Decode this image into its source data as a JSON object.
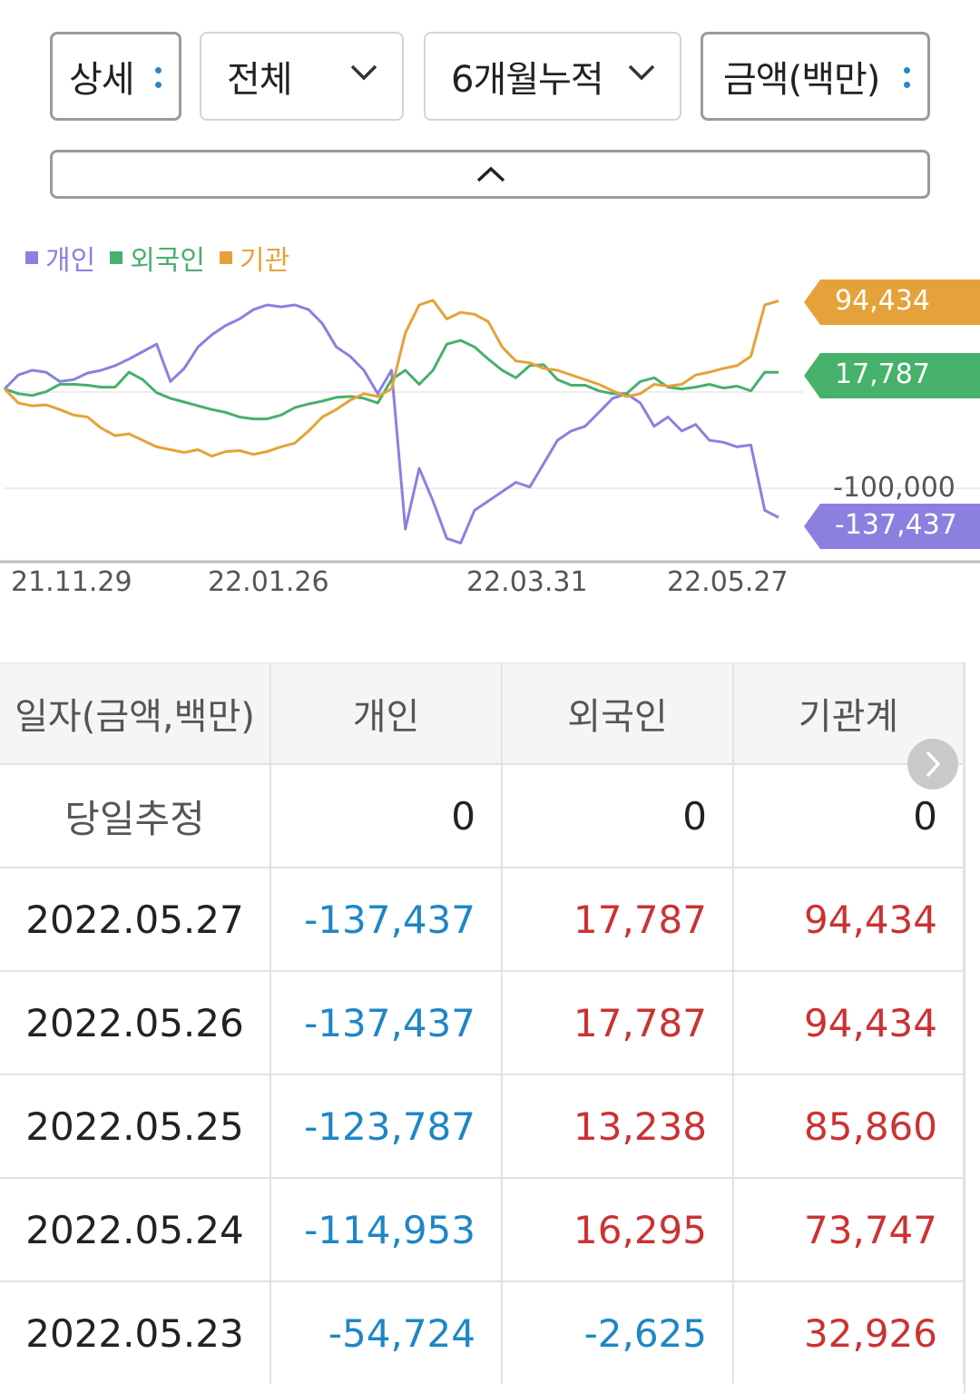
{
  "filters": [
    {
      "label": "상세",
      "control": "more"
    },
    {
      "label": "전체",
      "control": "dropdown"
    },
    {
      "label": "6개월누적",
      "control": "dropdown"
    },
    {
      "label": "금액(백만)",
      "control": "more"
    }
  ],
  "legend": [
    {
      "label": "개인",
      "color": "#8b80e0"
    },
    {
      "label": "외국인",
      "color": "#47b06b"
    },
    {
      "label": "기관",
      "color": "#e5a23a"
    }
  ],
  "chart_data": {
    "type": "line",
    "x_ticks": [
      "21.11.29",
      "22.01.26",
      "22.03.31",
      "22.05.27"
    ],
    "y_axis_label": "-100,000",
    "ylim": [
      -185000,
      125000
    ],
    "series": [
      {
        "name": "개인",
        "color": "#8b80e0",
        "last_value": "-137,437",
        "values": [
          0,
          15000,
          20000,
          18000,
          8000,
          10000,
          17000,
          20000,
          25000,
          32000,
          40000,
          48000,
          8000,
          22000,
          45000,
          58000,
          68000,
          75000,
          85000,
          90000,
          88000,
          90000,
          85000,
          70000,
          45000,
          35000,
          20000,
          -5000,
          20000,
          -150000,
          -85000,
          -120000,
          -160000,
          -165000,
          -130000,
          -120000,
          -110000,
          -100000,
          -105000,
          -80000,
          -55000,
          -45000,
          -40000,
          -25000,
          -10000,
          -5000,
          -15000,
          -40000,
          -30000,
          -45000,
          -38000,
          -55000,
          -57000,
          -62000,
          -60000,
          -130000,
          -137437
        ]
      },
      {
        "name": "외국인",
        "color": "#47b06b",
        "values": [
          0,
          -5000,
          -7000,
          -3000,
          5000,
          5000,
          4000,
          2000,
          2000,
          18000,
          10000,
          -4000,
          -10000,
          -14000,
          -18000,
          -22000,
          -25000,
          -30000,
          -32000,
          -32000,
          -28000,
          -20000,
          -16000,
          -13000,
          -9000,
          -8000,
          -10000,
          -15000,
          10000,
          20000,
          5000,
          20000,
          48000,
          52000,
          45000,
          32000,
          20000,
          12000,
          25000,
          26000,
          10000,
          4000,
          4000,
          -2000,
          -5000,
          -5000,
          8000,
          12000,
          2000,
          0,
          2000,
          5000,
          1000,
          3000,
          -2000,
          18000,
          17787
        ]
      },
      {
        "name": "기관",
        "color": "#e5a23a",
        "last_value": "94,434",
        "values": [
          0,
          -15000,
          -18000,
          -17000,
          -22000,
          -28000,
          -30000,
          -42000,
          -50000,
          -48000,
          -55000,
          -62000,
          -65000,
          -68000,
          -65000,
          -72000,
          -67000,
          -66000,
          -70000,
          -67000,
          -62000,
          -58000,
          -45000,
          -30000,
          -22000,
          -12000,
          -5000,
          -8000,
          0,
          60000,
          90000,
          95000,
          75000,
          82000,
          80000,
          72000,
          45000,
          30000,
          28000,
          22000,
          20000,
          15000,
          10000,
          5000,
          -2000,
          -8000,
          -5000,
          5000,
          3000,
          5000,
          15000,
          18000,
          22000,
          25000,
          35000,
          90000,
          94434
        ]
      }
    ]
  },
  "table": {
    "headers": [
      "일자(금액,백만)",
      "개인",
      "외국인",
      "기관계"
    ],
    "rows": [
      {
        "date": "당일추정",
        "individual": "0",
        "foreign": "0",
        "institution": "0"
      },
      {
        "date": "2022.05.27",
        "individual": "-137,437",
        "foreign": "17,787",
        "institution": "94,434"
      },
      {
        "date": "2022.05.26",
        "individual": "-137,437",
        "foreign": "17,787",
        "institution": "94,434"
      },
      {
        "date": "2022.05.25",
        "individual": "-123,787",
        "foreign": "13,238",
        "institution": "85,860"
      },
      {
        "date": "2022.05.24",
        "individual": "-114,953",
        "foreign": "16,295",
        "institution": "73,747"
      },
      {
        "date": "2022.05.23",
        "individual": "-54,724",
        "foreign": "-2,625",
        "institution": "32,926"
      }
    ]
  },
  "colors": {
    "negative": "#1e86c6",
    "positive": "#cc3232"
  },
  "icons": {
    "more": "vertical-dots-icon",
    "dropdown": "chevron-down-icon",
    "collapse": "chevron-up-icon",
    "next": "chevron-right-icon"
  }
}
